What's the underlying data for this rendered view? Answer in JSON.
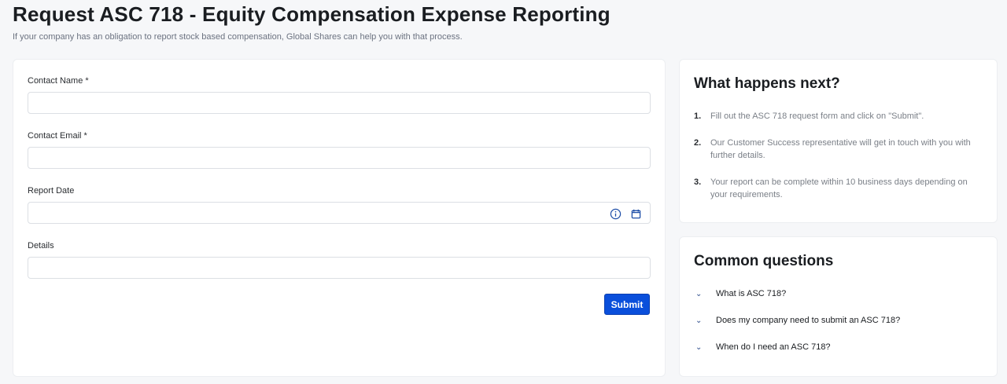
{
  "header": {
    "title": "Request ASC 718 - Equity Compensation Expense Reporting",
    "subtitle": "If your company has an obligation to report stock based compensation, Global Shares can help you with that process."
  },
  "form": {
    "fields": [
      {
        "label": "Contact Name *",
        "value": ""
      },
      {
        "label": "Contact Email *",
        "value": ""
      },
      {
        "label": "Report Date",
        "value": ""
      },
      {
        "label": "Details",
        "value": ""
      }
    ],
    "submit_label": "Submit",
    "accent": "#0a4fdb"
  },
  "next": {
    "title": "What happens next?",
    "steps": [
      {
        "num": "1.",
        "text": "Fill out the ASC 718 request form and click on \"Submit\"."
      },
      {
        "num": "2.",
        "text": "Our Customer Success representative will get in touch with you with further details."
      },
      {
        "num": "3.",
        "text": "Your report can be complete within 10 business days depending on your requirements."
      }
    ]
  },
  "faq": {
    "title": "Common questions",
    "items": [
      {
        "q": "What is ASC 718?"
      },
      {
        "q": "Does my company need to submit an ASC 718?"
      },
      {
        "q": "When do I need an ASC 718?"
      }
    ]
  }
}
